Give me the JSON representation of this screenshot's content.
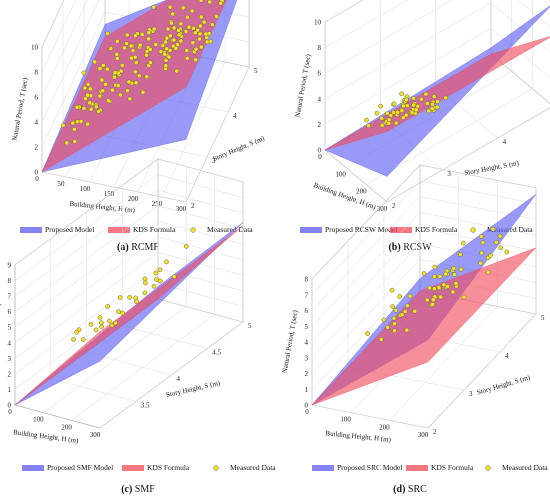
{
  "chart_data": [
    {
      "type": "scatter",
      "panel": "(a)",
      "caption_name": "RCMF",
      "xlabel": "Building Height, H (m)",
      "ylabel": "Story Height, S (m)",
      "zlabel": "Natural Period, T (sec)",
      "xticks": [
        "0",
        "50",
        "100",
        "150",
        "200",
        "250",
        "300"
      ],
      "yticks": [
        "2",
        "3",
        "4",
        "5"
      ],
      "zticks": [
        "0",
        "2",
        "4",
        "6",
        "8",
        "10"
      ],
      "xlim": [
        0,
        300
      ],
      "ylim": [
        2,
        5
      ],
      "zlim": [
        0,
        10
      ],
      "surfaces": [
        {
          "name": "Proposed Model",
          "color": "#5b5bf2",
          "corners": [
            [
              0,
              2,
              0
            ],
            [
              300,
              2,
              5
            ],
            [
              300,
              5,
              8
            ],
            [
              0,
              5,
              1
            ]
          ]
        },
        {
          "name": "KDS Formula",
          "color": "#f04b5a",
          "corners": [
            [
              0,
              2,
              0
            ],
            [
              300,
              2,
              9.2
            ],
            [
              300,
              5,
              9.2
            ],
            [
              0,
              5,
              0
            ]
          ]
        }
      ],
      "scatter_name": "Measured Data",
      "scatter_color": "#f4e21c",
      "scatter_summary": {
        "n": 170,
        "x_range": [
          10,
          300
        ],
        "y_range": [
          2.6,
          4.5
        ],
        "z_trend": "0.03*H + 0.4",
        "z_spread": 1.2
      },
      "legend": [
        "Proposed Model",
        "KDS Formula",
        "Measured Data"
      ]
    },
    {
      "type": "scatter",
      "panel": "(b)",
      "caption_name": "RCSW",
      "xlabel": "Building Height, H (m)",
      "ylabel": "Story Height, S (m)",
      "zlabel": "Natural Period, T (sec)",
      "xticks": [
        "0",
        "100",
        "200",
        "300"
      ],
      "yticks": [
        "2",
        "3",
        "4",
        "5"
      ],
      "zticks": [
        "0",
        "2",
        "4",
        "6",
        "8",
        "10"
      ],
      "xlim": [
        0,
        300
      ],
      "ylim": [
        2,
        5
      ],
      "zlim": [
        0,
        10
      ],
      "surfaces": [
        {
          "name": "Proposed RCSW Model",
          "color": "#5b5bf2",
          "corners": [
            [
              0,
              2,
              0
            ],
            [
              300,
              2,
              2
            ],
            [
              300,
              5,
              8
            ],
            [
              0,
              5,
              0.5
            ]
          ]
        },
        {
          "name": "KDS Formula",
          "color": "#f04b5a",
          "corners": [
            [
              0,
              2,
              0
            ],
            [
              300,
              2,
              5.5
            ],
            [
              300,
              5,
              5.5
            ],
            [
              0,
              5,
              0
            ]
          ]
        }
      ],
      "scatter_name": "Measured Data",
      "scatter_color": "#f4e21c",
      "scatter_summary": {
        "n": 60,
        "x_range": [
          20,
          250
        ],
        "y_range": [
          2.6,
          3.4
        ],
        "z_trend": "0.015*H + 0.6",
        "z_spread": 0.6
      },
      "legend": [
        "Proposed RCSW Model",
        "KDS Formula",
        "Measured Data"
      ]
    },
    {
      "type": "scatter",
      "panel": "(c)",
      "caption_name": "SMF",
      "xlabel": "Building Height, H (m)",
      "ylabel": "Story Height, S (m)",
      "zlabel": "Natural Period, T (sec)",
      "xticks": [
        "0",
        "100",
        "200",
        "300"
      ],
      "yticks": [
        "3.5",
        "4",
        "4.5",
        "5"
      ],
      "zticks": [
        "0",
        "1",
        "2",
        "3",
        "4",
        "5",
        "6",
        "7",
        "8",
        "9"
      ],
      "xlim": [
        0,
        300
      ],
      "ylim": [
        3,
        5
      ],
      "zlim": [
        0,
        9
      ],
      "surfaces": [
        {
          "name": "Proposed SMF Model",
          "color": "#5b5bf2",
          "corners": [
            [
              0,
              3,
              0
            ],
            [
              300,
              3,
              4.3
            ],
            [
              300,
              5,
              6.4
            ],
            [
              0,
              5,
              0.8
            ]
          ]
        },
        {
          "name": "KDS Formula",
          "color": "#f04b5a",
          "corners": [
            [
              0,
              3,
              0
            ],
            [
              300,
              3,
              6.2
            ],
            [
              300,
              5,
              6.2
            ],
            [
              0,
              5,
              0
            ]
          ]
        }
      ],
      "scatter_name": "Measured Data",
      "scatter_color": "#f4e21c",
      "scatter_summary": {
        "n": 30,
        "x_range": [
          20,
          280
        ],
        "y_range": [
          3.7,
          4.4
        ],
        "z_trend": "0.02*H + 1",
        "z_spread": 0.8
      },
      "legend": [
        "Proposed SMF Model",
        "KDS Formula",
        "Measured Data"
      ]
    },
    {
      "type": "scatter",
      "panel": "(d)",
      "caption_name": "SRC",
      "xlabel": "Building Height, H (m)",
      "ylabel": "Story Height, S (m)",
      "zlabel": "Natural Period, T (sec)",
      "xticks": [
        "0",
        "100",
        "200",
        "300"
      ],
      "yticks": [
        "2",
        "3",
        "4",
        "5"
      ],
      "zticks": [
        "0",
        "1",
        "2",
        "3",
        "4",
        "5",
        "6",
        "7",
        "8"
      ],
      "xlim": [
        0,
        300
      ],
      "ylim": [
        2,
        5
      ],
      "zlim": [
        0,
        8
      ],
      "surfaces": [
        {
          "name": "Proposed SRC Model",
          "color": "#5b5bf2",
          "corners": [
            [
              0,
              2,
              0
            ],
            [
              300,
              2,
              5.6
            ],
            [
              300,
              5,
              7.6
            ],
            [
              0,
              5,
              0.8
            ]
          ]
        },
        {
          "name": "KDS Formula",
          "color": "#f04b5a",
          "corners": [
            [
              0,
              2,
              0
            ],
            [
              300,
              2,
              4.2
            ],
            [
              300,
              5,
              4.2
            ],
            [
              0,
              5,
              0
            ]
          ]
        }
      ],
      "scatter_name": "Measured Data",
      "scatter_color": "#f4e21c",
      "scatter_summary": {
        "n": 60,
        "x_range": [
          60,
          300
        ],
        "y_range": [
          2.8,
          4.3
        ],
        "z_trend": "0.018*H + 1.4",
        "z_spread": 1.3
      },
      "legend": [
        "Proposed SRC Model",
        "KDS Formula",
        "Measured Data"
      ]
    }
  ]
}
